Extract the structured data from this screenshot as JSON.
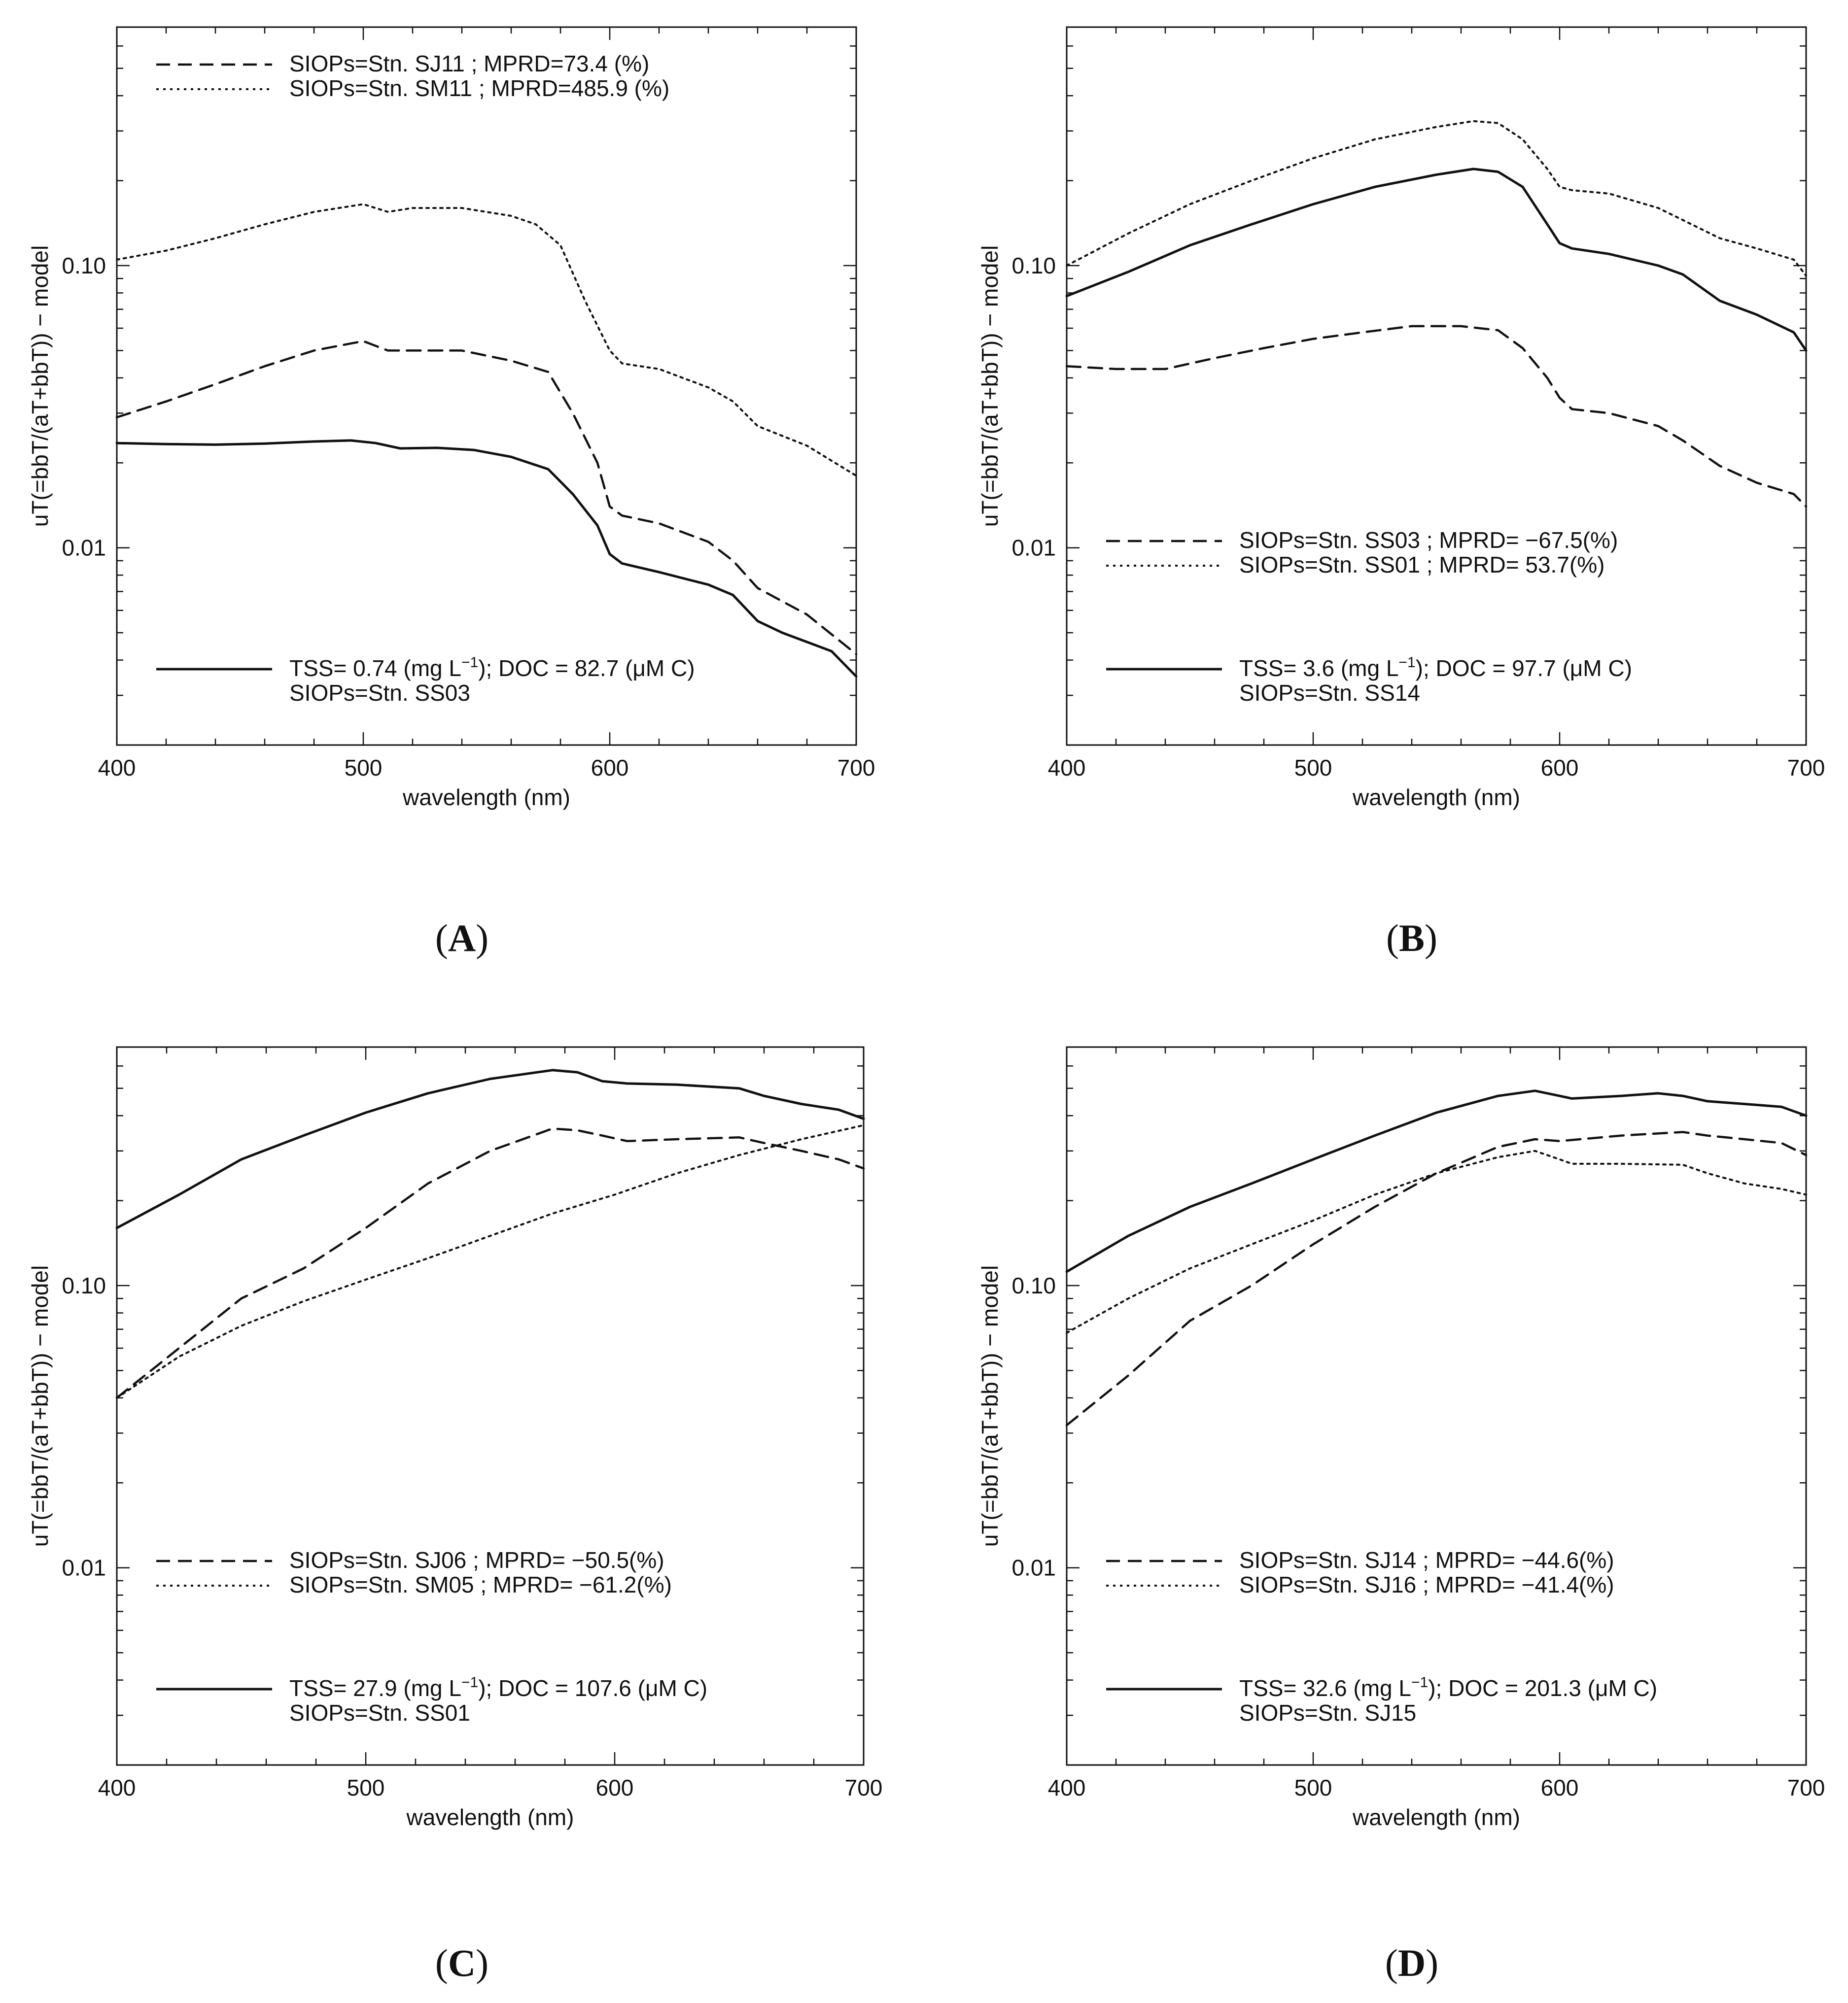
{
  "figure": {
    "panel_labels": [
      {
        "letter": "A",
        "open": "(",
        "close": ")"
      },
      {
        "letter": "B",
        "open": "(",
        "close": ")"
      },
      {
        "letter": "C",
        "open": "(",
        "close": ")"
      },
      {
        "letter": "D",
        "open": "(",
        "close": ")"
      }
    ]
  },
  "chart_data": [
    {
      "type": "line",
      "panel": "A",
      "xlabel": "wavelength (nm)",
      "ylabel": "uT(=bbT/(aT+bbT)) − model",
      "xlim": [
        400,
        700
      ],
      "ylim": [
        0.002,
        0.7
      ],
      "yscale": "log",
      "xticks": [
        "400",
        "500",
        "600",
        "700"
      ],
      "yticks": [
        {
          "value": 0.01,
          "label": "0.01"
        },
        {
          "value": 0.1,
          "label": "0.10"
        }
      ],
      "legend_top": [
        {
          "style": "dashed",
          "label": "SIOPs=Stn. SJ11 ; MPRD=73.4 (%)"
        },
        {
          "style": "dotted",
          "label": "SIOPs=Stn. SM11 ; MPRD=485.9 (%)"
        }
      ],
      "legend_bottom": {
        "style": "solid",
        "tss_label": "TSS= 0.74 (mg L",
        "doc_label": "); DOC = 82.7 (μM C)",
        "siops_label": "SIOPs=Stn. SS03",
        "unit_exp": "−1"
      },
      "series": [
        {
          "name": "SIOPs=Stn. SS03",
          "style": "solid",
          "x": [
            400,
            420,
            440,
            460,
            480,
            495,
            505,
            515,
            530,
            545,
            560,
            575,
            585,
            595,
            600,
            605,
            620,
            640,
            650,
            660,
            670,
            690,
            700
          ],
          "y": [
            0.0235,
            0.0233,
            0.0232,
            0.0234,
            0.0238,
            0.024,
            0.0235,
            0.0225,
            0.0226,
            0.0222,
            0.021,
            0.019,
            0.0155,
            0.012,
            0.0095,
            0.0088,
            0.0082,
            0.0074,
            0.0068,
            0.0055,
            0.005,
            0.0043,
            0.0035
          ]
        },
        {
          "name": "SIOPs=Stn. SJ11",
          "style": "dashed",
          "x": [
            400,
            420,
            440,
            460,
            480,
            500,
            510,
            520,
            540,
            560,
            575,
            585,
            595,
            600,
            605,
            620,
            640,
            650,
            660,
            680,
            700
          ],
          "y": [
            0.029,
            0.033,
            0.038,
            0.044,
            0.05,
            0.054,
            0.05,
            0.05,
            0.05,
            0.046,
            0.042,
            0.03,
            0.02,
            0.014,
            0.013,
            0.0122,
            0.0105,
            0.009,
            0.0072,
            0.0058,
            0.0042
          ]
        },
        {
          "name": "SIOPs=Stn. SM11",
          "style": "dotted",
          "x": [
            400,
            420,
            440,
            460,
            480,
            500,
            510,
            520,
            540,
            560,
            570,
            580,
            590,
            600,
            605,
            620,
            640,
            650,
            660,
            680,
            700
          ],
          "y": [
            0.105,
            0.113,
            0.125,
            0.14,
            0.155,
            0.165,
            0.155,
            0.16,
            0.16,
            0.15,
            0.14,
            0.118,
            0.075,
            0.05,
            0.045,
            0.043,
            0.037,
            0.033,
            0.027,
            0.023,
            0.018
          ]
        }
      ]
    },
    {
      "type": "line",
      "panel": "B",
      "xlabel": "wavelength (nm)",
      "ylabel": "uT(=bbT/(aT+bbT)) − model",
      "xlim": [
        400,
        700
      ],
      "ylim": [
        0.002,
        0.7
      ],
      "yscale": "log",
      "xticks": [
        "400",
        "500",
        "600",
        "700"
      ],
      "yticks": [
        {
          "value": 0.01,
          "label": "0.01"
        },
        {
          "value": 0.1,
          "label": "0.10"
        }
      ],
      "legend_top": [
        {
          "style": "dashed",
          "label": "SIOPs=Stn. SS03 ; MPRD=  −67.5(%)"
        },
        {
          "style": "dotted",
          "label": "SIOPs=Stn. SS01 ; MPRD=   53.7(%)"
        }
      ],
      "legend_bottom": {
        "style": "solid",
        "tss_label": "TSS=  3.6 (mg L",
        "doc_label": "); DOC =  97.7 (μM C)",
        "siops_label": "SIOPs=Stn. SS14",
        "unit_exp": "−1"
      },
      "series": [
        {
          "name": "SIOPs=Stn. SS14",
          "style": "solid",
          "x": [
            400,
            425,
            450,
            475,
            500,
            525,
            550,
            565,
            575,
            585,
            595,
            600,
            605,
            620,
            640,
            650,
            665,
            680,
            695,
            700
          ],
          "y": [
            0.078,
            0.095,
            0.118,
            0.14,
            0.165,
            0.19,
            0.21,
            0.22,
            0.215,
            0.19,
            0.14,
            0.12,
            0.115,
            0.11,
            0.1,
            0.093,
            0.075,
            0.067,
            0.058,
            0.05
          ]
        },
        {
          "name": "SIOPs=Stn. SS03",
          "style": "dashed",
          "x": [
            400,
            420,
            440,
            460,
            480,
            500,
            520,
            540,
            560,
            575,
            585,
            595,
            600,
            605,
            620,
            640,
            650,
            665,
            680,
            695,
            700
          ],
          "y": [
            0.044,
            0.043,
            0.043,
            0.047,
            0.051,
            0.055,
            0.058,
            0.061,
            0.061,
            0.059,
            0.051,
            0.04,
            0.034,
            0.031,
            0.03,
            0.027,
            0.024,
            0.0195,
            0.017,
            0.0155,
            0.014
          ]
        },
        {
          "name": "SIOPs=Stn. SS01",
          "style": "dotted",
          "x": [
            400,
            425,
            450,
            475,
            500,
            525,
            550,
            565,
            575,
            585,
            595,
            600,
            605,
            620,
            640,
            650,
            665,
            680,
            695,
            700
          ],
          "y": [
            0.1,
            0.13,
            0.165,
            0.2,
            0.24,
            0.28,
            0.31,
            0.325,
            0.32,
            0.28,
            0.22,
            0.19,
            0.185,
            0.18,
            0.16,
            0.145,
            0.125,
            0.115,
            0.105,
            0.092
          ]
        }
      ]
    },
    {
      "type": "line",
      "panel": "C",
      "xlabel": "wavelength (nm)",
      "ylabel": "uT(=bbT/(aT+bbT)) − model",
      "xlim": [
        400,
        700
      ],
      "ylim": [
        0.002,
        0.7
      ],
      "yscale": "log",
      "xticks": [
        "400",
        "500",
        "600",
        "700"
      ],
      "yticks": [
        {
          "value": 0.01,
          "label": "0.01"
        },
        {
          "value": 0.1,
          "label": "0.10"
        }
      ],
      "legend_top": [
        {
          "style": "dashed",
          "label": "SIOPs=Stn. SJ06 ; MPRD=  −50.5(%)"
        },
        {
          "style": "dotted",
          "label": "SIOPs=Stn. SM05 ; MPRD=  −61.2(%)"
        }
      ],
      "legend_bottom": {
        "style": "solid",
        "tss_label": "TSS= 27.9 (mg L",
        "doc_label": "); DOC = 107.6 (μM C)",
        "siops_label": "SIOPs=Stn. SS01",
        "unit_exp": "−1"
      },
      "series": [
        {
          "name": "SIOPs=Stn. SS01",
          "style": "solid",
          "x": [
            400,
            425,
            450,
            475,
            500,
            525,
            550,
            575,
            585,
            595,
            605,
            625,
            650,
            660,
            675,
            690,
            700
          ],
          "y": [
            0.16,
            0.21,
            0.28,
            0.34,
            0.41,
            0.48,
            0.54,
            0.58,
            0.57,
            0.53,
            0.52,
            0.515,
            0.5,
            0.47,
            0.44,
            0.42,
            0.39
          ]
        },
        {
          "name": "SIOPs=Stn. SJ06",
          "style": "dashed",
          "x": [
            400,
            425,
            450,
            475,
            500,
            525,
            550,
            575,
            585,
            595,
            605,
            625,
            650,
            660,
            675,
            690,
            700
          ],
          "y": [
            0.04,
            0.06,
            0.09,
            0.115,
            0.16,
            0.23,
            0.3,
            0.36,
            0.355,
            0.34,
            0.325,
            0.33,
            0.335,
            0.32,
            0.3,
            0.28,
            0.26
          ]
        },
        {
          "name": "SIOPs=Stn. SM05",
          "style": "dotted",
          "x": [
            400,
            425,
            450,
            475,
            500,
            525,
            550,
            575,
            600,
            625,
            650,
            675,
            700
          ],
          "y": [
            0.04,
            0.056,
            0.072,
            0.088,
            0.105,
            0.125,
            0.15,
            0.18,
            0.21,
            0.25,
            0.29,
            0.33,
            0.37
          ]
        }
      ]
    },
    {
      "type": "line",
      "panel": "D",
      "xlabel": "wavelength (nm)",
      "ylabel": "uT(=bbT/(aT+bbT)) − model",
      "xlim": [
        400,
        700
      ],
      "ylim": [
        0.002,
        0.7
      ],
      "yscale": "log",
      "xticks": [
        "400",
        "500",
        "600",
        "700"
      ],
      "yticks": [
        {
          "value": 0.01,
          "label": "0.01"
        },
        {
          "value": 0.1,
          "label": "0.10"
        }
      ],
      "legend_top": [
        {
          "style": "dashed",
          "label": "SIOPs=Stn. SJ14 ; MPRD=  −44.6(%)"
        },
        {
          "style": "dotted",
          "label": "SIOPs=Stn. SJ16 ; MPRD=  −41.4(%)"
        }
      ],
      "legend_bottom": {
        "style": "solid",
        "tss_label": "TSS= 32.6 (mg L",
        "doc_label": "); DOC = 201.3 (μM C)",
        "siops_label": "SIOPs=Stn. SJ15",
        "unit_exp": "−1"
      },
      "series": [
        {
          "name": "SIOPs=Stn. SJ15",
          "style": "solid",
          "x": [
            400,
            425,
            450,
            475,
            500,
            525,
            550,
            575,
            590,
            600,
            605,
            625,
            640,
            650,
            660,
            675,
            690,
            700
          ],
          "y": [
            0.112,
            0.15,
            0.19,
            0.23,
            0.28,
            0.34,
            0.41,
            0.47,
            0.49,
            0.47,
            0.46,
            0.47,
            0.48,
            0.47,
            0.45,
            0.44,
            0.43,
            0.4
          ]
        },
        {
          "name": "SIOPs=Stn. SJ14",
          "style": "dashed",
          "x": [
            400,
            425,
            450,
            475,
            500,
            525,
            550,
            575,
            590,
            600,
            625,
            650,
            660,
            675,
            690,
            700
          ],
          "y": [
            0.032,
            0.048,
            0.075,
            0.1,
            0.14,
            0.19,
            0.25,
            0.31,
            0.33,
            0.325,
            0.34,
            0.35,
            0.34,
            0.33,
            0.32,
            0.29
          ]
        },
        {
          "name": "SIOPs=Stn. SJ16",
          "style": "dotted",
          "x": [
            400,
            425,
            450,
            475,
            500,
            525,
            550,
            575,
            590,
            600,
            605,
            625,
            650,
            660,
            675,
            690,
            700
          ],
          "y": [
            0.068,
            0.09,
            0.115,
            0.14,
            0.17,
            0.21,
            0.25,
            0.285,
            0.3,
            0.28,
            0.27,
            0.27,
            0.268,
            0.25,
            0.23,
            0.22,
            0.21
          ]
        }
      ]
    }
  ]
}
